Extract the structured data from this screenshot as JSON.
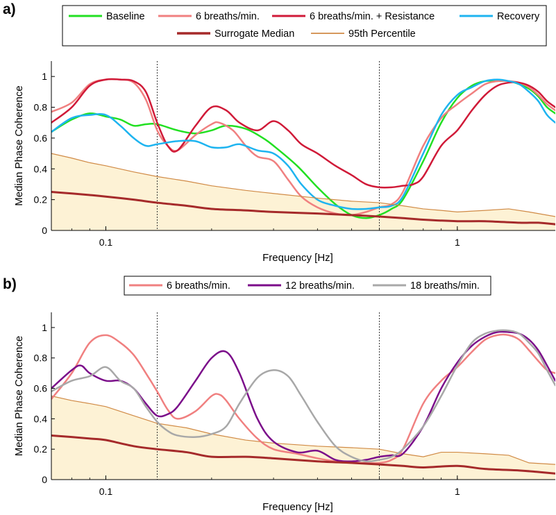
{
  "figure": {
    "panel_a_label": "a)",
    "panel_b_label": "b)"
  },
  "chart_data": [
    {
      "type": "line",
      "panel": "a)",
      "xlabel": "Frequency [Hz]",
      "ylabel": "Median Phase Coherence",
      "xscale": "log",
      "xlim": [
        0.07,
        1.9
      ],
      "ylim": [
        0,
        1.1
      ],
      "xticks": [
        0.1,
        1
      ],
      "xtick_labels": [
        "0.1",
        "1"
      ],
      "yticks": [
        0,
        0.2,
        0.4,
        0.6,
        0.8,
        1
      ],
      "ytick_labels": [
        "0",
        "0.2",
        "0.4",
        "0.6",
        "0.8",
        "1"
      ],
      "vlines": [
        0.14,
        0.6
      ],
      "grid": false,
      "legend_position": "top",
      "shaded_band": {
        "upper_series": "95th Percentile",
        "color": "#fdf2d5"
      },
      "series": [
        {
          "name": "Baseline",
          "color": "#22e022",
          "width": 2.5,
          "x": [
            0.07,
            0.08,
            0.09,
            0.1,
            0.11,
            0.12,
            0.13,
            0.14,
            0.16,
            0.18,
            0.2,
            0.22,
            0.25,
            0.28,
            0.3,
            0.35,
            0.4,
            0.45,
            0.5,
            0.55,
            0.6,
            0.65,
            0.7,
            0.8,
            0.9,
            1.0,
            1.1,
            1.2,
            1.3,
            1.4,
            1.5,
            1.6,
            1.7,
            1.8,
            1.9
          ],
          "y": [
            0.64,
            0.72,
            0.76,
            0.74,
            0.72,
            0.68,
            0.69,
            0.69,
            0.65,
            0.63,
            0.65,
            0.68,
            0.66,
            0.6,
            0.55,
            0.42,
            0.28,
            0.17,
            0.1,
            0.08,
            0.1,
            0.14,
            0.2,
            0.45,
            0.7,
            0.86,
            0.94,
            0.97,
            0.97,
            0.97,
            0.95,
            0.92,
            0.87,
            0.8,
            0.76
          ]
        },
        {
          "name": "6 breaths/min.",
          "color": "#f08080",
          "width": 2.5,
          "x": [
            0.07,
            0.08,
            0.09,
            0.1,
            0.11,
            0.12,
            0.13,
            0.14,
            0.15,
            0.16,
            0.18,
            0.2,
            0.21,
            0.23,
            0.25,
            0.27,
            0.3,
            0.33,
            0.36,
            0.4,
            0.45,
            0.5,
            0.55,
            0.6,
            0.65,
            0.7,
            0.8,
            0.9,
            1.0,
            1.1,
            1.2,
            1.3,
            1.4,
            1.5,
            1.6,
            1.7,
            1.8,
            1.9
          ],
          "y": [
            0.77,
            0.83,
            0.95,
            0.98,
            0.98,
            0.96,
            0.85,
            0.65,
            0.55,
            0.52,
            0.62,
            0.69,
            0.7,
            0.65,
            0.55,
            0.48,
            0.45,
            0.33,
            0.22,
            0.15,
            0.11,
            0.1,
            0.12,
            0.15,
            0.17,
            0.25,
            0.55,
            0.73,
            0.82,
            0.89,
            0.95,
            0.97,
            0.97,
            0.96,
            0.93,
            0.88,
            0.82,
            0.78
          ]
        },
        {
          "name": "6 breaths/min. + Resistance",
          "color": "#d01a38",
          "width": 2.5,
          "x": [
            0.07,
            0.08,
            0.09,
            0.1,
            0.11,
            0.12,
            0.13,
            0.14,
            0.15,
            0.16,
            0.18,
            0.2,
            0.22,
            0.24,
            0.27,
            0.3,
            0.33,
            0.36,
            0.4,
            0.45,
            0.5,
            0.55,
            0.6,
            0.65,
            0.7,
            0.75,
            0.8,
            0.9,
            1.0,
            1.1,
            1.2,
            1.3,
            1.4,
            1.5,
            1.6,
            1.7,
            1.8,
            1.9
          ],
          "y": [
            0.7,
            0.8,
            0.94,
            0.98,
            0.98,
            0.97,
            0.9,
            0.7,
            0.55,
            0.52,
            0.68,
            0.8,
            0.78,
            0.7,
            0.65,
            0.71,
            0.65,
            0.56,
            0.5,
            0.42,
            0.36,
            0.3,
            0.28,
            0.28,
            0.29,
            0.3,
            0.35,
            0.55,
            0.65,
            0.78,
            0.88,
            0.94,
            0.96,
            0.96,
            0.94,
            0.9,
            0.84,
            0.8
          ]
        },
        {
          "name": "Recovery",
          "color": "#1eb4f0",
          "width": 2.5,
          "x": [
            0.07,
            0.08,
            0.09,
            0.1,
            0.11,
            0.12,
            0.13,
            0.14,
            0.16,
            0.18,
            0.2,
            0.22,
            0.24,
            0.27,
            0.3,
            0.33,
            0.36,
            0.4,
            0.45,
            0.5,
            0.55,
            0.6,
            0.65,
            0.7,
            0.8,
            0.9,
            1.0,
            1.1,
            1.2,
            1.3,
            1.4,
            1.5,
            1.6,
            1.7,
            1.8,
            1.9
          ],
          "y": [
            0.64,
            0.73,
            0.75,
            0.75,
            0.68,
            0.6,
            0.55,
            0.56,
            0.58,
            0.58,
            0.54,
            0.54,
            0.56,
            0.52,
            0.5,
            0.42,
            0.3,
            0.2,
            0.16,
            0.14,
            0.14,
            0.15,
            0.16,
            0.22,
            0.5,
            0.75,
            0.88,
            0.93,
            0.97,
            0.98,
            0.97,
            0.95,
            0.9,
            0.84,
            0.75,
            0.7
          ]
        },
        {
          "name": "Surrogate Median",
          "color": "#a52a2a",
          "width": 3,
          "x": [
            0.07,
            0.08,
            0.09,
            0.1,
            0.12,
            0.14,
            0.17,
            0.2,
            0.25,
            0.3,
            0.4,
            0.5,
            0.6,
            0.7,
            0.8,
            1.0,
            1.2,
            1.5,
            1.7,
            1.9
          ],
          "y": [
            0.25,
            0.24,
            0.23,
            0.22,
            0.2,
            0.18,
            0.16,
            0.14,
            0.13,
            0.12,
            0.11,
            0.1,
            0.09,
            0.08,
            0.07,
            0.06,
            0.06,
            0.05,
            0.05,
            0.04
          ]
        },
        {
          "name": "95th Percentile",
          "color": "#d08a45",
          "width": 1.2,
          "x": [
            0.07,
            0.08,
            0.09,
            0.1,
            0.12,
            0.14,
            0.17,
            0.2,
            0.25,
            0.3,
            0.4,
            0.5,
            0.6,
            0.7,
            0.8,
            0.9,
            1.0,
            1.2,
            1.4,
            1.6,
            1.9
          ],
          "y": [
            0.5,
            0.47,
            0.44,
            0.42,
            0.38,
            0.35,
            0.32,
            0.29,
            0.26,
            0.24,
            0.21,
            0.19,
            0.18,
            0.16,
            0.14,
            0.13,
            0.12,
            0.13,
            0.14,
            0.12,
            0.09
          ]
        }
      ]
    },
    {
      "type": "line",
      "panel": "b)",
      "xlabel": "Frequency [Hz]",
      "ylabel": "Median Phase Coherence",
      "xscale": "log",
      "xlim": [
        0.07,
        1.9
      ],
      "ylim": [
        0,
        1.1
      ],
      "xticks": [
        0.1,
        1
      ],
      "xtick_labels": [
        "0.1",
        "1"
      ],
      "yticks": [
        0,
        0.2,
        0.4,
        0.6,
        0.8,
        1
      ],
      "ytick_labels": [
        "0",
        "0.2",
        "0.4",
        "0.6",
        "0.8",
        "1"
      ],
      "vlines": [
        0.14,
        0.6
      ],
      "grid": false,
      "legend_position": "top",
      "shaded_band": {
        "upper_series": "95th Percentile",
        "color": "#fdf2d5"
      },
      "series": [
        {
          "name": "6 breaths/min.",
          "color": "#f08080",
          "width": 2.5,
          "x": [
            0.07,
            0.08,
            0.09,
            0.1,
            0.11,
            0.12,
            0.13,
            0.14,
            0.15,
            0.16,
            0.18,
            0.2,
            0.21,
            0.22,
            0.24,
            0.27,
            0.3,
            0.35,
            0.4,
            0.45,
            0.5,
            0.55,
            0.6,
            0.65,
            0.7,
            0.8,
            0.9,
            1.0,
            1.1,
            1.2,
            1.3,
            1.4,
            1.5,
            1.6,
            1.7,
            1.8,
            1.9
          ],
          "y": [
            0.53,
            0.7,
            0.9,
            0.95,
            0.9,
            0.82,
            0.7,
            0.58,
            0.46,
            0.4,
            0.45,
            0.55,
            0.56,
            0.52,
            0.4,
            0.27,
            0.2,
            0.17,
            0.14,
            0.12,
            0.11,
            0.11,
            0.11,
            0.13,
            0.2,
            0.5,
            0.65,
            0.74,
            0.84,
            0.92,
            0.95,
            0.95,
            0.92,
            0.85,
            0.78,
            0.72,
            0.7
          ]
        },
        {
          "name": "12 breaths/min.",
          "color": "#7b0d8a",
          "width": 2.5,
          "x": [
            0.07,
            0.08,
            0.085,
            0.09,
            0.1,
            0.11,
            0.12,
            0.13,
            0.14,
            0.15,
            0.16,
            0.18,
            0.2,
            0.22,
            0.24,
            0.27,
            0.3,
            0.35,
            0.4,
            0.45,
            0.5,
            0.55,
            0.6,
            0.65,
            0.7,
            0.8,
            0.9,
            1.0,
            1.1,
            1.2,
            1.3,
            1.4,
            1.5,
            1.6,
            1.7,
            1.8,
            1.9
          ],
          "y": [
            0.6,
            0.72,
            0.75,
            0.7,
            0.65,
            0.65,
            0.6,
            0.5,
            0.42,
            0.43,
            0.48,
            0.65,
            0.8,
            0.84,
            0.7,
            0.4,
            0.25,
            0.18,
            0.19,
            0.13,
            0.12,
            0.13,
            0.15,
            0.16,
            0.17,
            0.35,
            0.6,
            0.77,
            0.88,
            0.94,
            0.97,
            0.97,
            0.96,
            0.92,
            0.85,
            0.75,
            0.65
          ]
        },
        {
          "name": "18 breaths/min.",
          "color": "#a8a8a8",
          "width": 2.5,
          "x": [
            0.07,
            0.08,
            0.09,
            0.1,
            0.11,
            0.12,
            0.13,
            0.14,
            0.15,
            0.16,
            0.18,
            0.2,
            0.22,
            0.24,
            0.27,
            0.3,
            0.33,
            0.36,
            0.4,
            0.45,
            0.5,
            0.55,
            0.6,
            0.65,
            0.7,
            0.8,
            0.9,
            1.0,
            1.1,
            1.2,
            1.3,
            1.4,
            1.5,
            1.6,
            1.7,
            1.8,
            1.9
          ],
          "y": [
            0.58,
            0.65,
            0.68,
            0.74,
            0.65,
            0.6,
            0.48,
            0.38,
            0.32,
            0.29,
            0.28,
            0.3,
            0.35,
            0.5,
            0.67,
            0.72,
            0.68,
            0.55,
            0.38,
            0.22,
            0.15,
            0.12,
            0.13,
            0.15,
            0.2,
            0.35,
            0.55,
            0.75,
            0.9,
            0.96,
            0.98,
            0.98,
            0.96,
            0.9,
            0.83,
            0.72,
            0.62
          ]
        },
        {
          "name": "Surrogate Median",
          "color": "#a52a2a",
          "width": 3,
          "x": [
            0.07,
            0.08,
            0.09,
            0.1,
            0.12,
            0.14,
            0.17,
            0.2,
            0.25,
            0.3,
            0.4,
            0.5,
            0.6,
            0.7,
            0.8,
            1.0,
            1.2,
            1.5,
            1.7,
            1.9
          ],
          "y": [
            0.29,
            0.28,
            0.27,
            0.26,
            0.22,
            0.2,
            0.18,
            0.15,
            0.15,
            0.14,
            0.12,
            0.11,
            0.1,
            0.09,
            0.08,
            0.09,
            0.07,
            0.06,
            0.05,
            0.04
          ]
        }
      ]
    }
  ]
}
